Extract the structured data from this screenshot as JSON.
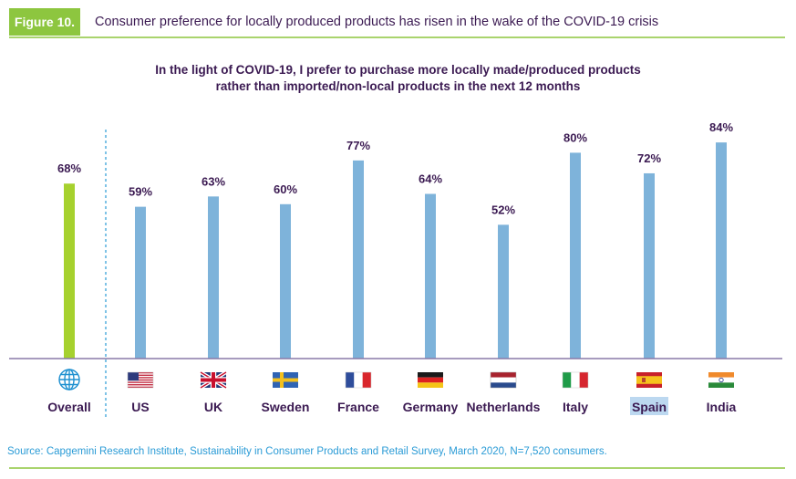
{
  "figure": {
    "badge": "Figure 10.",
    "title": "Consumer preference for locally produced products has risen in the wake of the COVID-19 crisis"
  },
  "chart_data": {
    "type": "bar",
    "title_lines": [
      "In the light of COVID-19, I prefer to purchase more locally made/produced products",
      "rather than imported/non-local products in the next 12 months"
    ],
    "categories": [
      "Overall",
      "US",
      "UK",
      "Sweden",
      "France",
      "Germany",
      "Netherlands",
      "Italy",
      "Spain",
      "India"
    ],
    "values": [
      68,
      59,
      63,
      60,
      77,
      64,
      52,
      80,
      72,
      84
    ],
    "value_labels": [
      "68%",
      "59%",
      "63%",
      "60%",
      "77%",
      "64%",
      "52%",
      "80%",
      "72%",
      "84%"
    ],
    "icons": [
      "globe-icon",
      "us-flag-icon",
      "uk-flag-icon",
      "sweden-flag-icon",
      "france-flag-icon",
      "germany-flag-icon",
      "netherlands-flag-icon",
      "italy-flag-icon",
      "spain-flag-icon",
      "india-flag-icon"
    ],
    "ylim": [
      0,
      100
    ],
    "highlighted_label": "Spain",
    "colors": {
      "overall_bar": "#a6d12e",
      "country_bar": "#7eb3da",
      "baseline": "#8a7aa8",
      "label": "#3b1a52",
      "divider": "#2a9bd6",
      "highlight": "#bcd8f0"
    }
  },
  "source": "Source: Capgemini Research Institute, Sustainability in Consumer Products and Retail Survey, March 2020, N=7,520 consumers."
}
